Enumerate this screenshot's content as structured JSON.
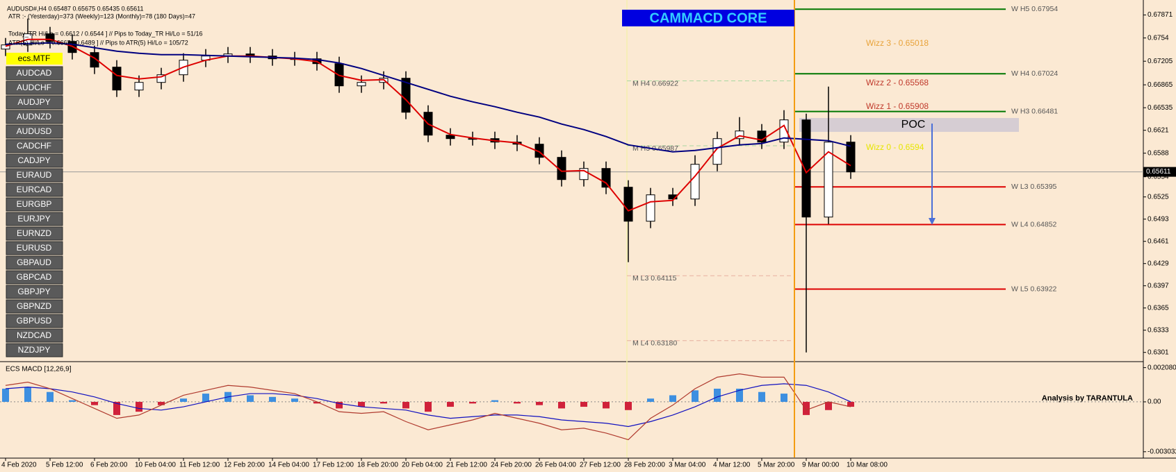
{
  "ui": {
    "header_lines": [
      "AUDUSD#,H4  0.65487 0.65675 0.65435 0.65611",
      "ATR :- (Yesterday)=373   (Weekly)=123   (Monthly)=78   (180 Days)=47",
      "Today_TR Hi/Lo = 0.6612 / 0.6544 ]  // Pips to Today_TR Hi/Lo = 51/16",
      "ATR(5) Hi/Lo = 0.6667 / 0.6489 ]  // Pips to ATR(5) Hi/Lo = 105/72"
    ],
    "mtf_label": "ecs.MTF",
    "symbols": [
      "AUDCAD",
      "AUDCHF",
      "AUDJPY",
      "AUDNZD",
      "AUDUSD",
      "CADCHF",
      "CADJPY",
      "EURAUD",
      "EURCAD",
      "EURGBP",
      "EURJPY",
      "EURNZD",
      "EURUSD",
      "GBPAUD",
      "GBPCAD",
      "GBPJPY",
      "GBPNZD",
      "GBPUSD",
      "NZDCAD",
      "NZDJPY"
    ],
    "banner": "CAMMACD CORE",
    "poc_label": "POC",
    "wizz_labels": [
      {
        "text": "Wizz 3 - 0.65018",
        "color": "#e8a33a"
      },
      {
        "text": "Wizz 2 - 0.65568",
        "color": "#c0392b"
      },
      {
        "text": "Wizz 1 - 0.65908",
        "color": "#c0392b"
      },
      {
        "text": "Wizz 0 - 0.6594",
        "color": "#e6e600"
      }
    ]
  },
  "chart_data": [
    {
      "type": "candlestick",
      "categories": [
        "4 Feb 2020",
        null,
        "5 Feb 12:00",
        null,
        "6 Feb 20:00",
        null,
        "10 Feb 04:00",
        null,
        "11 Feb 12:00",
        null,
        "12 Feb 20:00",
        null,
        "14 Feb 04:00",
        null,
        "17 Feb 12:00",
        null,
        "18 Feb 20:00",
        null,
        "20 Feb 04:00",
        null,
        "21 Feb 12:00",
        null,
        "24 Feb 20:00",
        null,
        "26 Feb 04:00",
        null,
        "27 Feb 12:00",
        null,
        "28 Feb 20:00",
        null,
        "3 Mar 04:00",
        null,
        "4 Mar 12:00",
        null,
        "5 Mar 20:00",
        null,
        "9 Mar 00:00",
        null,
        "10 Mar 08:00"
      ],
      "open": [
        0.6738,
        0.6744,
        0.676,
        0.6749,
        0.6733,
        0.6712,
        0.6679,
        0.669,
        0.6701,
        0.6722,
        0.6728,
        0.6731,
        0.6728,
        0.6724,
        0.6724,
        0.6717,
        0.6685,
        0.669,
        0.6696,
        0.6647,
        0.6614,
        0.6609,
        0.6609,
        0.6604,
        0.6601,
        0.6582,
        0.655,
        0.6566,
        0.6539,
        0.649,
        0.6528,
        0.6522,
        0.6572,
        0.6609,
        0.662,
        0.6604,
        0.6636,
        0.6496,
        0.6604
      ],
      "high": [
        0.6754,
        0.6782,
        0.677,
        0.6759,
        0.6743,
        0.6722,
        0.67,
        0.6711,
        0.6732,
        0.6738,
        0.6741,
        0.6741,
        0.6738,
        0.6734,
        0.6734,
        0.6727,
        0.67,
        0.6706,
        0.6706,
        0.6657,
        0.6624,
        0.6619,
        0.6619,
        0.6614,
        0.6611,
        0.6592,
        0.6576,
        0.6576,
        0.6549,
        0.6538,
        0.6538,
        0.6585,
        0.6619,
        0.664,
        0.663,
        0.665,
        0.6645,
        0.6684,
        0.6614
      ],
      "low": [
        0.6728,
        0.6734,
        0.6739,
        0.6723,
        0.6702,
        0.6669,
        0.6669,
        0.668,
        0.6691,
        0.6712,
        0.6718,
        0.6718,
        0.6714,
        0.6714,
        0.6707,
        0.6675,
        0.6675,
        0.668,
        0.6637,
        0.6604,
        0.6599,
        0.6599,
        0.6594,
        0.6591,
        0.6572,
        0.654,
        0.654,
        0.6529,
        0.6431,
        0.648,
        0.6512,
        0.6512,
        0.6562,
        0.6599,
        0.6594,
        0.6594,
        0.6301,
        0.6486,
        0.6551
      ],
      "close": [
        0.6744,
        0.676,
        0.6749,
        0.6733,
        0.6712,
        0.6679,
        0.669,
        0.6701,
        0.6722,
        0.6728,
        0.6731,
        0.6728,
        0.6724,
        0.6724,
        0.6717,
        0.6685,
        0.669,
        0.6696,
        0.6647,
        0.6614,
        0.6609,
        0.6609,
        0.6604,
        0.6601,
        0.6582,
        0.655,
        0.6566,
        0.6539,
        0.649,
        0.6528,
        0.6522,
        0.6572,
        0.6609,
        0.662,
        0.6604,
        0.6636,
        0.6496,
        0.6604,
        0.6561
      ],
      "up_color": "#ffffff",
      "down_color": "#000000",
      "wick_color": "#000000",
      "lines": [
        {
          "color": "#dd0000",
          "values": [
            0.6742,
            0.6752,
            0.6752,
            0.6742,
            0.6725,
            0.67,
            0.6695,
            0.6698,
            0.6712,
            0.6722,
            0.6728,
            0.6728,
            0.6726,
            0.6724,
            0.672,
            0.67,
            0.6693,
            0.6694,
            0.6665,
            0.663,
            0.6615,
            0.661,
            0.6606,
            0.6603,
            0.659,
            0.6562,
            0.6563,
            0.6545,
            0.6505,
            0.6518,
            0.652,
            0.6555,
            0.6595,
            0.6613,
            0.6607,
            0.6628,
            0.656,
            0.659,
            0.657
          ]
        },
        {
          "color": "#000080",
          "values": [
            0.6745,
            0.6746,
            0.6747,
            0.6745,
            0.674,
            0.6735,
            0.6732,
            0.673,
            0.673,
            0.6729,
            0.6728,
            0.6727,
            0.6726,
            0.6725,
            0.6723,
            0.6718,
            0.671,
            0.67,
            0.669,
            0.668,
            0.667,
            0.6662,
            0.6655,
            0.6647,
            0.664,
            0.663,
            0.6622,
            0.6612,
            0.66,
            0.6595,
            0.659,
            0.6592,
            0.6596,
            0.66,
            0.6602,
            0.661,
            0.6608,
            0.6606,
            0.6598
          ]
        }
      ],
      "levels": [
        {
          "label": "W H5 0.67954",
          "value": 0.67954,
          "color": "#007700",
          "dash": false
        },
        {
          "label": "W H4 0.67024",
          "value": 0.67024,
          "color": "#007700",
          "dash": false
        },
        {
          "label": "W H3 0.66481",
          "value": 0.66481,
          "color": "#007700",
          "dash": false
        },
        {
          "label": "W L3 0.65395",
          "value": 0.65395,
          "color": "#dd0000",
          "dash": false
        },
        {
          "label": "W L4 0.64852",
          "value": 0.64852,
          "color": "#dd0000",
          "dash": false
        },
        {
          "label": "W L5 0.63922",
          "value": 0.63922,
          "color": "#dd0000",
          "dash": false
        },
        {
          "label": "M H4 0.66922",
          "value": 0.66922,
          "color": "#a8d8a0",
          "dash": true
        },
        {
          "label": "M H3 0.65987",
          "value": 0.65987,
          "color": "#a8d8a0",
          "dash": true
        },
        {
          "label": "M L3 0.64115",
          "value": 0.64115,
          "color": "#e8b0a0",
          "dash": true
        },
        {
          "label": "M L4 0.63180",
          "value": 0.6318,
          "color": "#e8b0a0",
          "dash": true
        }
      ],
      "last": 0.65611,
      "ylim": [
        0.62887,
        0.68087
      ],
      "yticks": [
        0.67871,
        0.6754,
        0.67205,
        0.66865,
        0.66535,
        0.6621,
        0.6588,
        0.6554,
        0.6525,
        0.6493,
        0.6461,
        0.6429,
        0.6397,
        0.6365,
        0.6333,
        0.6301
      ]
    },
    {
      "type": "macd",
      "title": "ECS MACD [12,26,9]",
      "annotation": "Analysis by TARANTULA",
      "values": [
        0.0008,
        0.0009,
        0.0006,
        0.0001,
        -0.0002,
        -0.0008,
        -0.0006,
        -0.0002,
        0.0002,
        0.0005,
        0.0006,
        0.0004,
        0.0003,
        0.0002,
        -0.0001,
        -0.0004,
        -0.0003,
        -0.0001,
        -0.0004,
        -0.0006,
        -0.0003,
        -0.0001,
        0.0001,
        -0.0001,
        -0.0002,
        -0.0004,
        -0.0003,
        -0.0004,
        -0.0005,
        0.0002,
        0.0004,
        0.0007,
        0.0008,
        0.0008,
        0.0006,
        0.0005,
        -0.0008,
        -0.0005,
        -0.0003
      ],
      "pos_color": "#3d8fe0",
      "neg_color": "#d0213a",
      "series": [
        {
          "color": "#1010c0",
          "values": [
            0.0008,
            0.0009,
            0.0008,
            0.0006,
            0.0003,
            -0.0001,
            -0.0004,
            -0.0005,
            -0.0003,
            0.0,
            0.0003,
            0.0005,
            0.0005,
            0.0004,
            0.0002,
            -0.0001,
            -0.0003,
            -0.0004,
            -0.0005,
            -0.0008,
            -0.001,
            -0.0009,
            -0.0008,
            -0.0008,
            -0.0009,
            -0.0011,
            -0.0012,
            -0.0013,
            -0.0015,
            -0.0012,
            -0.0008,
            -0.0003,
            0.0003,
            0.0007,
            0.001,
            0.0011,
            0.001,
            0.0006,
            0.0
          ]
        },
        {
          "color": "#b03a2e",
          "values": [
            0.001,
            0.0012,
            0.0008,
            0.0002,
            -0.0004,
            -0.001,
            -0.0008,
            -0.0002,
            0.0004,
            0.0007,
            0.001,
            0.0009,
            0.0007,
            0.0005,
            0.0,
            -0.0006,
            -0.0007,
            -0.0006,
            -0.0012,
            -0.0017,
            -0.0014,
            -0.0011,
            -0.0007,
            -0.001,
            -0.0013,
            -0.0017,
            -0.0016,
            -0.0019,
            -0.0023,
            -0.001,
            -0.0002,
            0.0008,
            0.0015,
            0.0017,
            0.0015,
            0.0015,
            -0.0005,
            0.0,
            -0.0003
          ]
        }
      ],
      "ylim": [
        -0.003378,
        0.00236
      ],
      "yticks": [
        0.0020802,
        {
          "value": 0,
          "label": "0.00"
        },
        -0.003032
      ]
    }
  ]
}
